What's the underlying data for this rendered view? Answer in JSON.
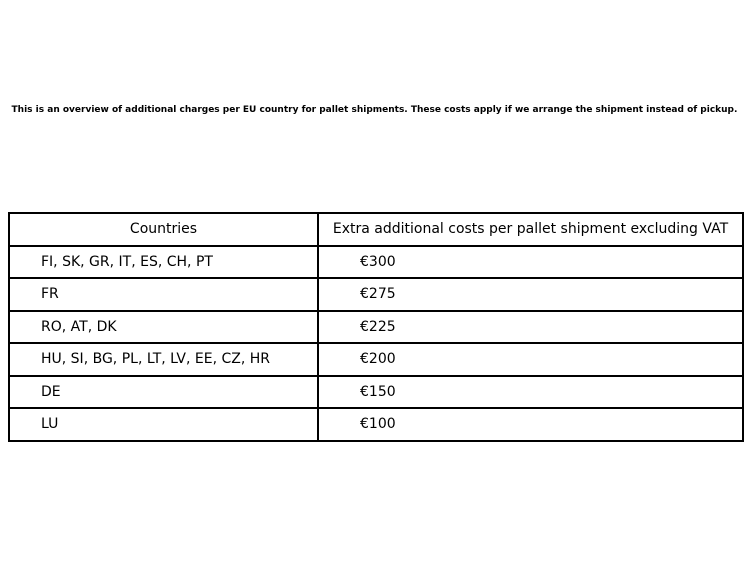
{
  "intro": "This is an overview of additional charges per EU country for pallet shipments. These costs apply if we arrange the shipment instead of pickup.",
  "table": {
    "headers": {
      "countries": "Countries",
      "costs": "Extra additional costs per pallet shipment excluding VAT"
    },
    "rows": [
      {
        "countries": "FI, SK, GR, IT, ES, CH, PT",
        "cost": "€300"
      },
      {
        "countries": "FR",
        "cost": "€275"
      },
      {
        "countries": "RO, AT, DK",
        "cost": "€225"
      },
      {
        "countries": "HU, SI, BG, PL, LT, LV, EE, CZ, HR",
        "cost": "€200"
      },
      {
        "countries": "DE",
        "cost": "€150"
      },
      {
        "countries": "LU",
        "cost": "€100"
      }
    ]
  },
  "colors": {
    "text": "#000000",
    "background": "#ffffff",
    "border": "#000000"
  }
}
